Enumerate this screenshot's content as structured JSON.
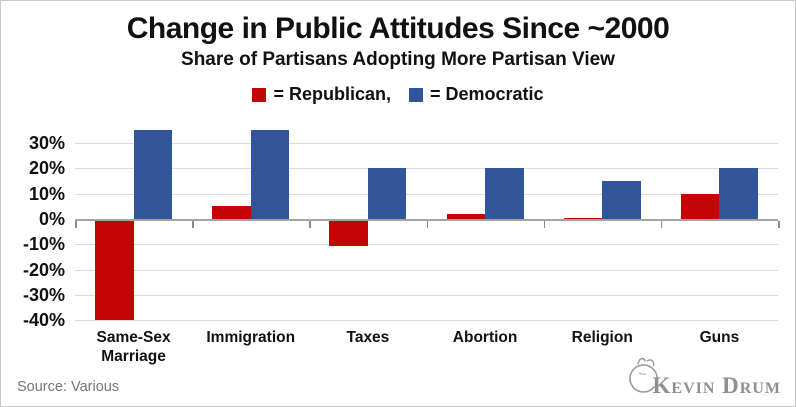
{
  "header": {
    "title": "Change in Public Attitudes Since ~2000",
    "subtitle": "Share of Partisans Adopting More Partisan View",
    "legend": [
      {
        "label": "= Republican,",
        "color": "#c40505",
        "series": "Republican"
      },
      {
        "label": "= Democratic",
        "color": "#31549b",
        "series": "Democratic"
      }
    ]
  },
  "chart_data": {
    "type": "bar",
    "categories": [
      "Same-Sex Marriage",
      "Immigration",
      "Taxes",
      "Abortion",
      "Religion",
      "Guns"
    ],
    "series": [
      {
        "name": "Republican",
        "color": "#c40505",
        "values": [
          -39,
          5,
          -10,
          2,
          0.5,
          10
        ]
      },
      {
        "name": "Democratic",
        "color": "#31549b",
        "values": [
          35,
          35,
          20,
          20,
          15,
          20
        ]
      }
    ],
    "title": "Change in Public Attitudes Since ~2000",
    "subtitle": "Share of Partisans Adopting More Partisan View",
    "xlabel": "",
    "ylabel": "",
    "y_ticks": [
      30,
      20,
      10,
      0,
      -10,
      -20,
      -30,
      -40
    ],
    "y_tick_suffix": "%",
    "ylim": [
      -40,
      36
    ],
    "grid": true,
    "legend_position": "top"
  },
  "footer": {
    "source": "Source: Various",
    "logo_text": "Kevin Drum"
  },
  "colors": {
    "grid": "#dcdcdc",
    "axis": "#a3a3a3",
    "muted_text": "#757575",
    "logo": "#8f8f8f"
  }
}
